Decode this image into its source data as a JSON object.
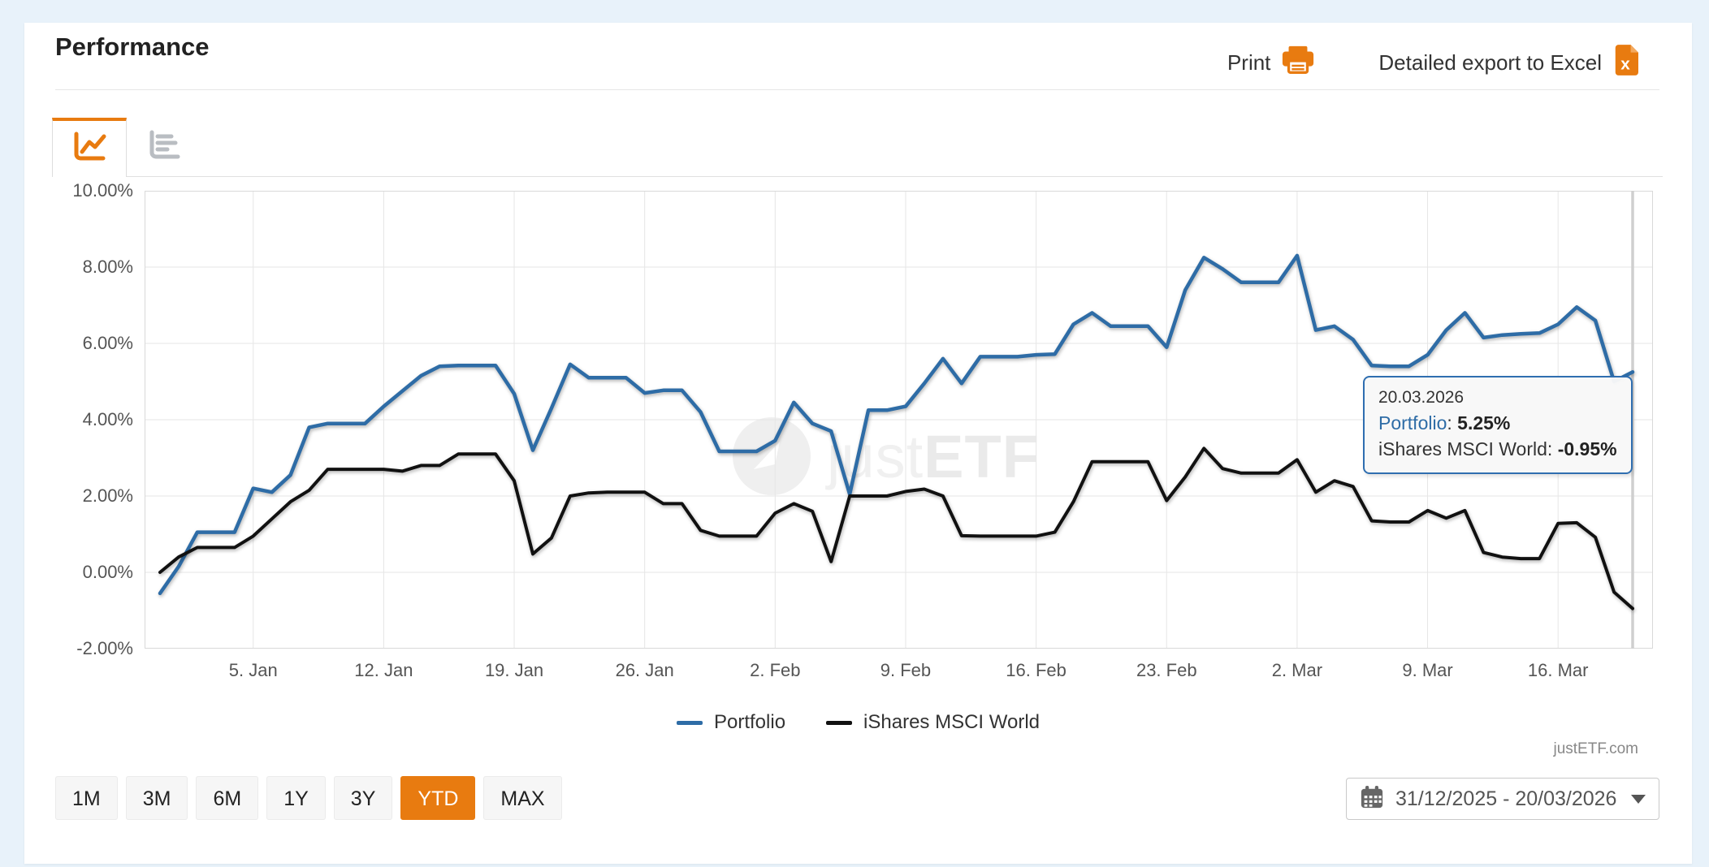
{
  "header": {
    "title": "Performance",
    "print_label": "Print",
    "export_label": "Detailed export to Excel"
  },
  "tabs": [
    {
      "name": "line-chart-view",
      "active": true
    },
    {
      "name": "bar-chart-view",
      "active": false
    }
  ],
  "watermark": {
    "part1": "just",
    "part2": "ETF"
  },
  "tooltip": {
    "date": "20.03.2026",
    "sep": ": ",
    "rows": [
      {
        "name": "Portfolio",
        "value": "5.25%"
      },
      {
        "name": "iShares MSCI World",
        "value": "-0.95%"
      }
    ],
    "day": 79
  },
  "footer_brand": "justETF.com",
  "controls": {
    "range_buttons": [
      "1M",
      "3M",
      "6M",
      "1Y",
      "3Y",
      "YTD",
      "MAX"
    ],
    "active_range": "YTD",
    "date_range": "31/12/2025 - 20/03/2026"
  },
  "icons": {
    "print": "printer-icon",
    "export": "excel-file-icon",
    "excel_letter": "x",
    "tab_active": "line-chart-icon",
    "tab_inactive": "bar-chart-icon",
    "date": "calendar-icon",
    "date_caret": "caret-down-icon"
  },
  "colors": {
    "accent_orange": "#e87b10",
    "portfolio_blue": "#2e6ca6",
    "benchmark_black": "#111111",
    "grid": "#e6e6e6",
    "plot_border": "#d9d9d9",
    "crosshair": "#cfcfcf",
    "axis_text": "#555555",
    "page_background": "#e8f2fa"
  },
  "chart_data": {
    "type": "line",
    "title": "Performance",
    "x_start_date": "31.12.2025",
    "x_end_date": "20.03.2026",
    "ylim": [
      -2,
      10
    ],
    "grid": true,
    "legend_position": "bottom",
    "y_tick_labels": [
      "10.00%",
      "8.00%",
      "6.00%",
      "4.00%",
      "2.00%",
      "0.00%",
      "-2.00%"
    ],
    "x_ticks": [
      {
        "label": "5. Jan",
        "day": 5
      },
      {
        "label": "12. Jan",
        "day": 12
      },
      {
        "label": "19. Jan",
        "day": 19
      },
      {
        "label": "26. Jan",
        "day": 26
      },
      {
        "label": "2. Feb",
        "day": 33
      },
      {
        "label": "9. Feb",
        "day": 40
      },
      {
        "label": "16. Feb",
        "day": 47
      },
      {
        "label": "23. Feb",
        "day": 54
      },
      {
        "label": "2. Mar",
        "day": 61
      },
      {
        "label": "9. Mar",
        "day": 68
      },
      {
        "label": "16. Mar",
        "day": 75
      }
    ],
    "days_total": 79,
    "series": [
      {
        "name": "Portfolio",
        "color": "#2e6ca6",
        "values": [
          -0.55,
          0.15,
          1.05,
          1.05,
          1.05,
          2.2,
          2.1,
          2.55,
          3.8,
          3.9,
          3.9,
          3.9,
          4.35,
          4.75,
          5.15,
          5.4,
          5.42,
          5.42,
          5.42,
          4.68,
          3.2,
          4.3,
          5.45,
          5.1,
          5.1,
          5.1,
          4.7,
          4.77,
          4.77,
          4.2,
          3.17,
          3.17,
          3.17,
          3.45,
          4.45,
          3.9,
          3.7,
          2.05,
          4.25,
          4.25,
          4.35,
          4.95,
          5.6,
          4.95,
          5.65,
          5.65,
          5.65,
          5.7,
          5.72,
          6.5,
          6.8,
          6.45,
          6.45,
          6.45,
          5.9,
          7.4,
          8.25,
          7.95,
          7.6,
          7.6,
          7.6,
          8.3,
          6.35,
          6.45,
          6.1,
          5.42,
          5.4,
          5.4,
          5.7,
          6.35,
          6.8,
          6.15,
          6.22,
          6.25,
          6.27,
          6.5,
          6.95,
          6.6,
          5.0,
          5.25
        ]
      },
      {
        "name": "iShares MSCI World",
        "color": "#111111",
        "values": [
          0.0,
          0.4,
          0.65,
          0.65,
          0.65,
          0.95,
          1.4,
          1.85,
          2.15,
          2.7,
          2.7,
          2.7,
          2.7,
          2.65,
          2.8,
          2.8,
          3.1,
          3.1,
          3.1,
          2.4,
          0.48,
          0.9,
          2.0,
          2.08,
          2.1,
          2.1,
          2.1,
          1.8,
          1.8,
          1.1,
          0.95,
          0.95,
          0.95,
          1.55,
          1.8,
          1.6,
          0.28,
          2.0,
          2.0,
          2.0,
          2.12,
          2.18,
          2.0,
          0.96,
          0.95,
          0.95,
          0.95,
          0.95,
          1.05,
          1.85,
          2.9,
          2.9,
          2.9,
          2.9,
          1.88,
          2.5,
          3.25,
          2.72,
          2.6,
          2.6,
          2.6,
          2.95,
          2.1,
          2.4,
          2.25,
          1.35,
          1.32,
          1.32,
          1.62,
          1.42,
          1.62,
          0.52,
          0.4,
          0.36,
          0.36,
          1.28,
          1.3,
          0.92,
          -0.52,
          -0.95
        ]
      }
    ]
  }
}
